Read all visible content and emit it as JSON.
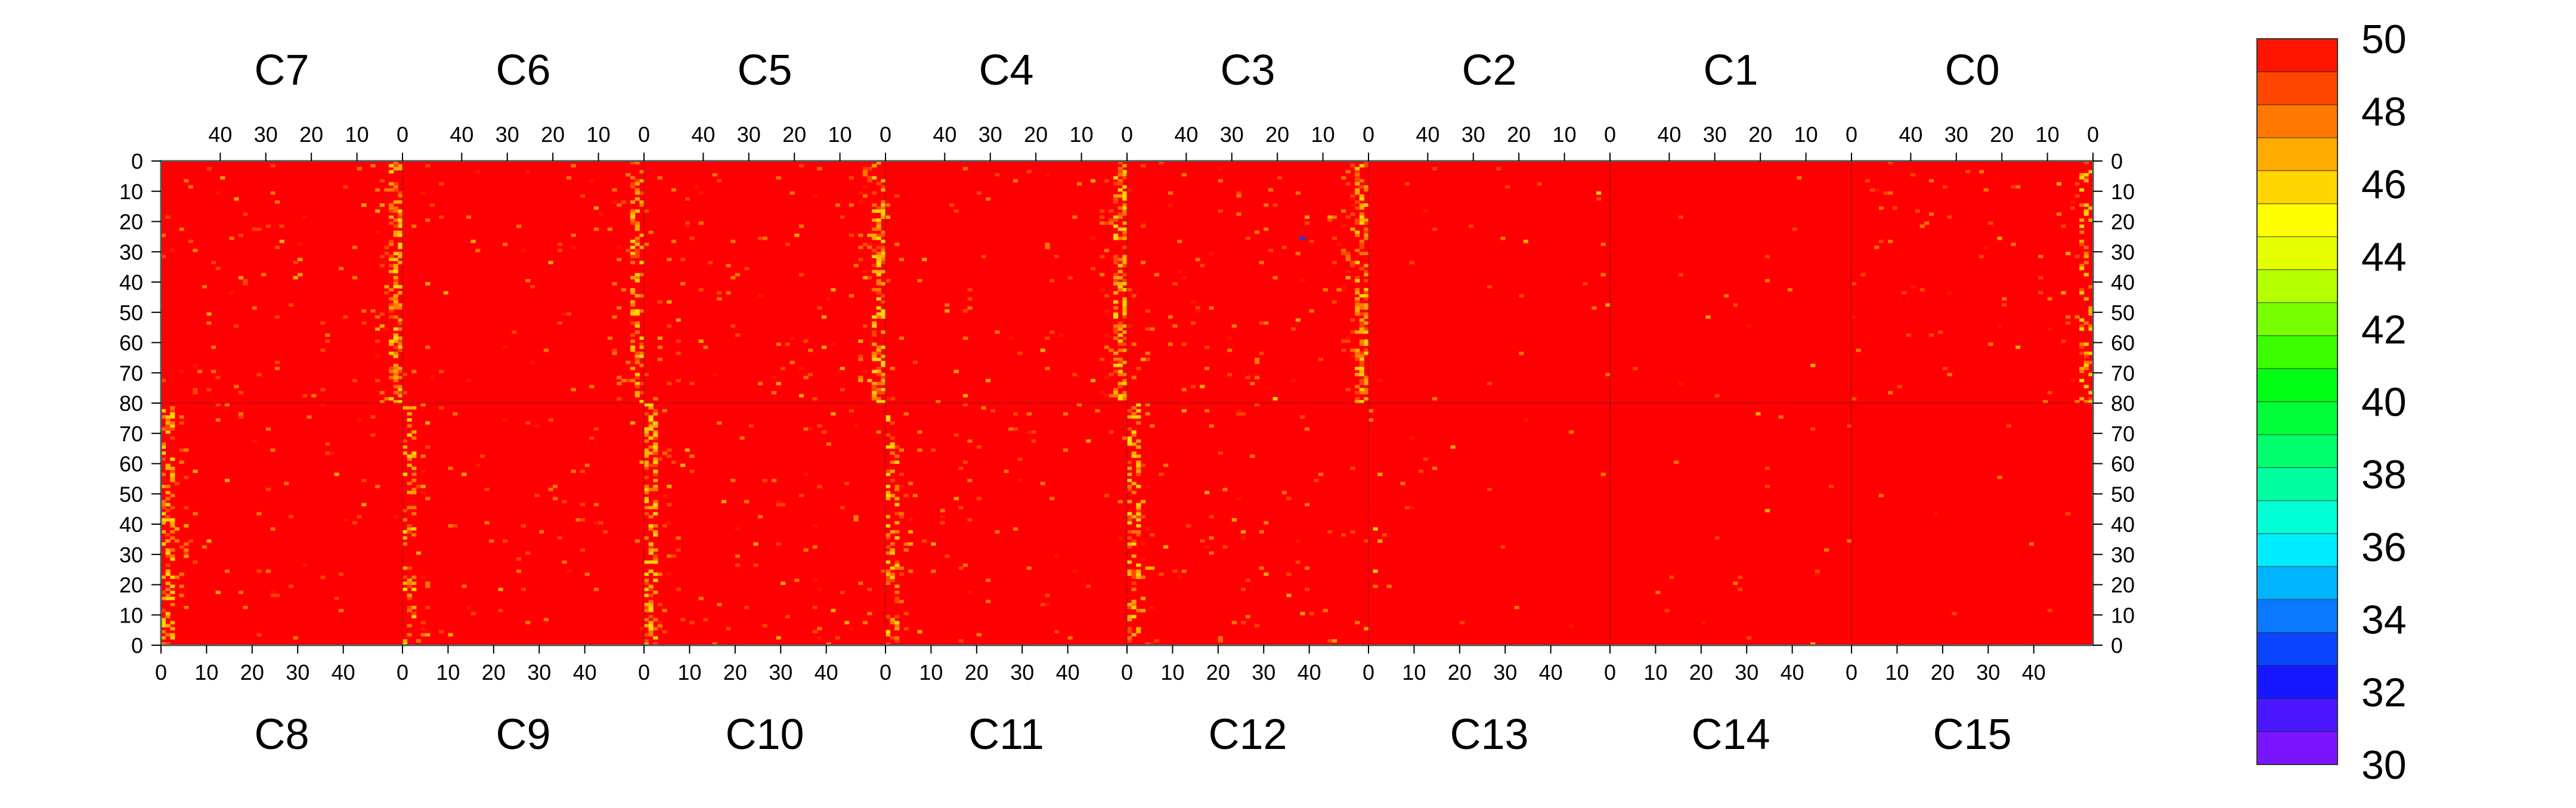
{
  "chart_data": {
    "type": "heatmap",
    "title": "",
    "xlabel": "",
    "ylabel": "",
    "top_chips": [
      "C7",
      "C6",
      "C5",
      "C4",
      "C3",
      "C2",
      "C1",
      "C0"
    ],
    "bottom_chips": [
      "C8",
      "C9",
      "C10",
      "C11",
      "C12",
      "C13",
      "C14",
      "C15"
    ],
    "chip_columns": 53,
    "chip_rows": 80,
    "x_ticks": [
      "0",
      "10",
      "20",
      "30",
      "40"
    ],
    "y_ticks": [
      "0",
      "10",
      "20",
      "30",
      "40",
      "50",
      "60",
      "70",
      "80"
    ],
    "top_x_axis": "reversed",
    "bottom_y_axis": "reversed",
    "xlim": [
      0,
      52
    ],
    "ylim": [
      0,
      80
    ],
    "colorbar": {
      "range": [
        30,
        50
      ],
      "tick_labels": [
        "30",
        "32",
        "34",
        "36",
        "38",
        "40",
        "42",
        "44",
        "46",
        "48",
        "50"
      ],
      "colors": [
        "#7a16ff",
        "#4b17ff",
        "#1717ff",
        "#0a44ff",
        "#0a78ff",
        "#00b4ff",
        "#00ecff",
        "#00ffd2",
        "#00ffa0",
        "#00ff6c",
        "#00ff3a",
        "#00ff14",
        "#3cff00",
        "#78ff00",
        "#b4ff00",
        "#e6ff00",
        "#ffff00",
        "#ffd600",
        "#ffab00",
        "#ff7800",
        "#ff4600",
        "#ff1400"
      ]
    },
    "background_value": 50,
    "background_color": "#ff0000",
    "frame_color": "#555555",
    "hot_columns_description": "lower values (orange/yellow, ~44-49) concentrated near column 0-2 of each chip; a few isolated low pixels",
    "hot_column_intensity": {
      "C7": 0.85,
      "C6": 0.55,
      "C5": 0.85,
      "C4": 0.75,
      "C3": 0.9,
      "C2": 0.05,
      "C1": 0.0,
      "C0": 0.45,
      "C8": 0.7,
      "C9": 0.45,
      "C10": 0.85,
      "C11": 0.55,
      "C12": 0.7,
      "C13": 0.05,
      "C14": 0.0,
      "C15": 0.0
    },
    "isolated_pixels": [
      {
        "chip": "C3",
        "col": 14,
        "row": 54,
        "value": 33
      },
      {
        "chip": "C3",
        "col": 20,
        "row": 1,
        "value": 46
      }
    ]
  }
}
